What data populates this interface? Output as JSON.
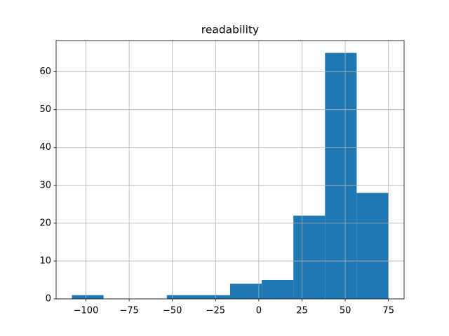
{
  "chart_data": {
    "type": "histogram",
    "title": "readability",
    "bins": [
      -108.1,
      -89.8,
      -71.5,
      -53.2,
      -34.9,
      -16.6,
      1.7,
      20.0,
      38.3,
      56.6,
      74.9
    ],
    "counts": [
      1,
      0,
      0,
      1,
      1,
      4,
      5,
      22,
      65,
      28
    ],
    "color": "#1f77b4",
    "xlim": [
      -117.25,
      84.05
    ],
    "xticks": [
      {
        "value": -100,
        "label": "−100"
      },
      {
        "value": -75,
        "label": "−75"
      },
      {
        "value": -50,
        "label": "−50"
      },
      {
        "value": -25,
        "label": "−25"
      },
      0,
      25,
      50,
      75
    ],
    "ylim": [
      0,
      68.25
    ],
    "yticks": [
      0,
      10,
      20,
      30,
      40,
      50,
      60
    ],
    "grid": true
  }
}
